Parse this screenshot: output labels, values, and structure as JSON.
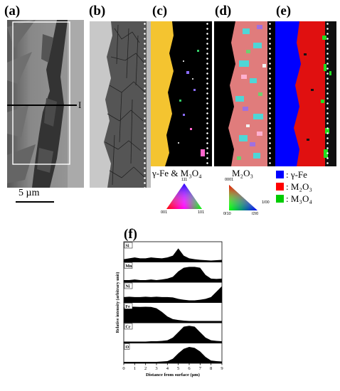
{
  "panels": {
    "a": {
      "label": "(a)",
      "line_label": "I",
      "scale_bar": "5 µm"
    },
    "b": {
      "label": "(b)"
    },
    "c": {
      "label": "(c)",
      "caption": "γ-Fe & M₃O₄",
      "tri": {
        "top": "111",
        "left": "001",
        "right": "101"
      }
    },
    "d": {
      "label": "(d)",
      "caption": "M₂O₃",
      "tri": {
        "top": "0001",
        "left": "0ī10",
        "right": "1ī00",
        "bottom_right": "ī2ī0"
      }
    },
    "e": {
      "label": "(e)"
    }
  },
  "legend": [
    {
      "color": "#0000ff",
      "text": ": γ-Fe"
    },
    {
      "color": "#ff0000",
      "text": ": M₂O₃"
    },
    {
      "color": "#00cc00",
      "text": ": M₃O₄"
    }
  ],
  "chart_data": {
    "type": "area",
    "panel_label": "(f)",
    "xlabel": "Distance from surface (μm)",
    "ylabel": "Relative intensity (arbitrary unit)",
    "x_ticks": [
      0,
      1,
      2,
      3,
      4,
      5,
      6,
      7,
      8,
      9
    ],
    "xlim": [
      0,
      9
    ],
    "x": [
      0,
      0.5,
      1,
      1.5,
      2,
      2.5,
      3,
      3.5,
      4,
      4.5,
      5,
      5.5,
      6,
      6.5,
      7,
      7.5,
      8,
      8.5,
      9
    ],
    "series": [
      {
        "name": "Si",
        "values": [
          0.15,
          0.2,
          0.25,
          0.2,
          0.2,
          0.25,
          0.22,
          0.2,
          0.25,
          0.35,
          0.75,
          0.35,
          0.2,
          0.15,
          0.12,
          0.1,
          0.08,
          0.1,
          0.12
        ]
      },
      {
        "name": "Mn",
        "values": [
          0.12,
          0.12,
          0.15,
          0.12,
          0.12,
          0.15,
          0.12,
          0.15,
          0.2,
          0.3,
          0.6,
          0.8,
          0.85,
          0.85,
          0.8,
          0.4,
          0.2,
          0.18,
          0.2
        ]
      },
      {
        "name": "Ni",
        "values": [
          0.3,
          0.32,
          0.3,
          0.3,
          0.32,
          0.3,
          0.32,
          0.3,
          0.3,
          0.28,
          0.2,
          0.15,
          0.12,
          0.12,
          0.15,
          0.2,
          0.3,
          0.6,
          0.9
        ]
      },
      {
        "name": "Fe",
        "values": [
          0.85,
          0.88,
          0.88,
          0.87,
          0.88,
          0.87,
          0.8,
          0.6,
          0.35,
          0.2,
          0.15,
          0.12,
          0.1,
          0.1,
          0.1,
          0.1,
          0.1,
          0.1,
          0.1
        ]
      },
      {
        "name": "Cr",
        "values": [
          0.08,
          0.08,
          0.08,
          0.08,
          0.08,
          0.1,
          0.1,
          0.12,
          0.15,
          0.3,
          0.6,
          0.9,
          0.95,
          0.9,
          0.6,
          0.3,
          0.15,
          0.12,
          0.1
        ]
      },
      {
        "name": "O",
        "values": [
          0.08,
          0.08,
          0.08,
          0.08,
          0.08,
          0.08,
          0.08,
          0.1,
          0.12,
          0.25,
          0.55,
          0.8,
          0.9,
          0.85,
          0.65,
          0.35,
          0.15,
          0.12,
          0.1
        ]
      }
    ]
  }
}
